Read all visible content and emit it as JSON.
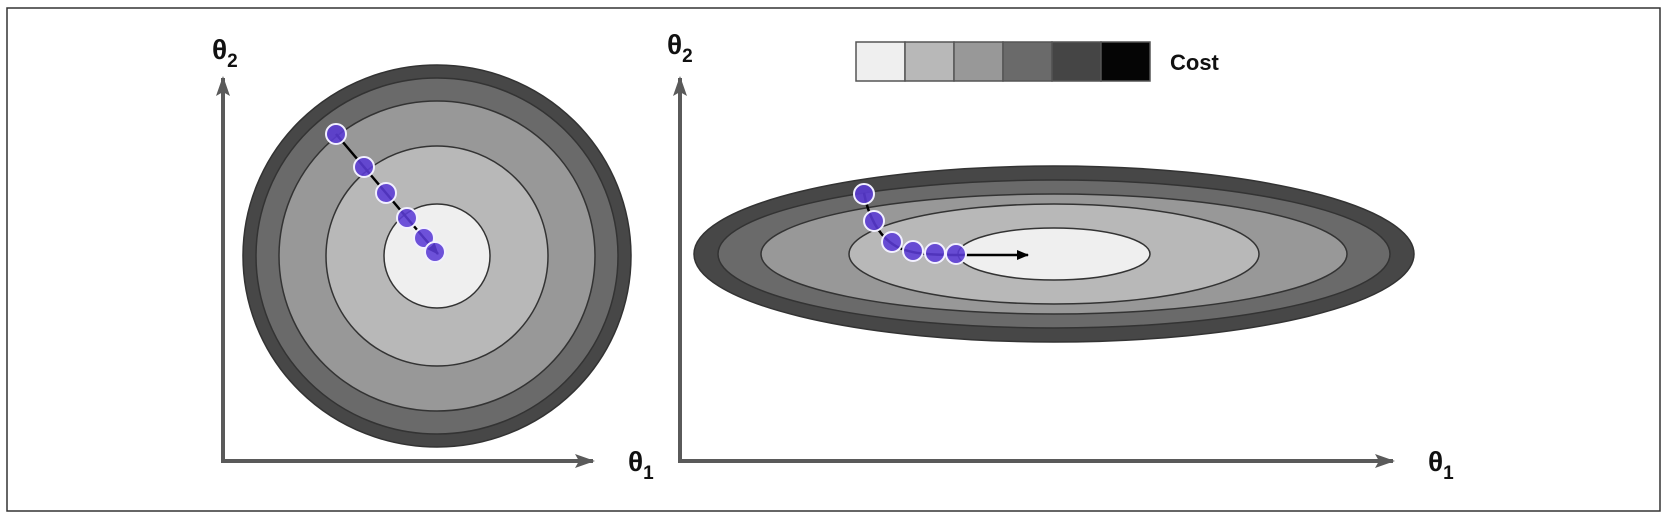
{
  "legend": {
    "label": "Cost",
    "swatches": [
      "#efefef",
      "#b8b8b8",
      "#989898",
      "#6a6a6a",
      "#454545",
      "#050505"
    ]
  },
  "colors": {
    "frame": "#333333",
    "axis": "#5a5a5a",
    "contour_stroke": "#333333",
    "contour_fills": [
      "#474747",
      "#6a6a6a",
      "#989898",
      "#b8b8b8",
      "#efefef"
    ],
    "step_point": "#5b3bd6",
    "step_point_stroke": "#f2f0ff",
    "path": "#000000"
  },
  "panels": [
    {
      "id": "left",
      "x_axis": {
        "symbol": "θ",
        "subscript": "1"
      },
      "y_axis": {
        "symbol": "θ",
        "subscript": "2"
      },
      "contour_shape": "circular",
      "steps": 6
    },
    {
      "id": "right",
      "x_axis": {
        "symbol": "θ",
        "subscript": "1"
      },
      "y_axis": {
        "symbol": "θ",
        "subscript": "2"
      },
      "contour_shape": "elongated",
      "steps": 6
    }
  ]
}
